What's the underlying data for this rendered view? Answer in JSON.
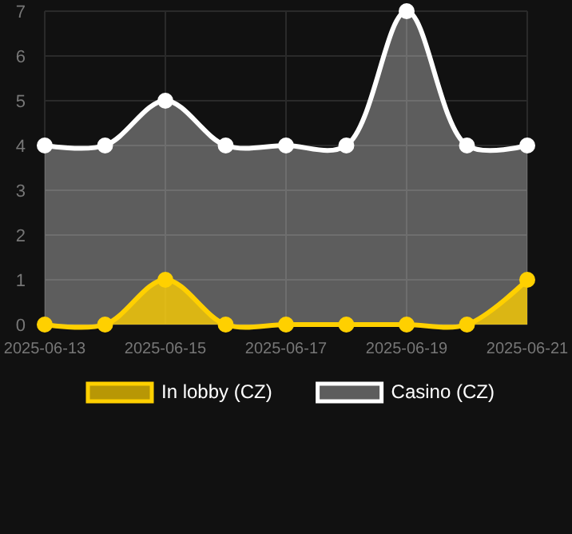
{
  "chart_data": {
    "type": "area",
    "x": [
      "2025-06-13",
      "2025-06-14",
      "2025-06-15",
      "2025-06-16",
      "2025-06-17",
      "2025-06-18",
      "2025-06-19",
      "2025-06-20",
      "2025-06-21"
    ],
    "series": [
      {
        "name": "In lobby (CZ)",
        "color": "#ffd000",
        "values": [
          0,
          0,
          1,
          0,
          0,
          0,
          0,
          0,
          1
        ]
      },
      {
        "name": "Casino (CZ)",
        "color": "#ffffff",
        "values": [
          4,
          4,
          5,
          4,
          4,
          4,
          7,
          4,
          4
        ]
      }
    ],
    "xlim": [
      "2025-06-13",
      "2025-06-21"
    ],
    "xticks": [
      "2025-06-13",
      "2025-06-15",
      "2025-06-17",
      "2025-06-19",
      "2025-06-21"
    ],
    "ylim": [
      0,
      7
    ],
    "yticks": [
      0,
      1,
      2,
      3,
      4,
      5,
      6,
      7
    ],
    "grid": true,
    "legend": "bottom",
    "marker": "circle",
    "line_style": "solid"
  }
}
